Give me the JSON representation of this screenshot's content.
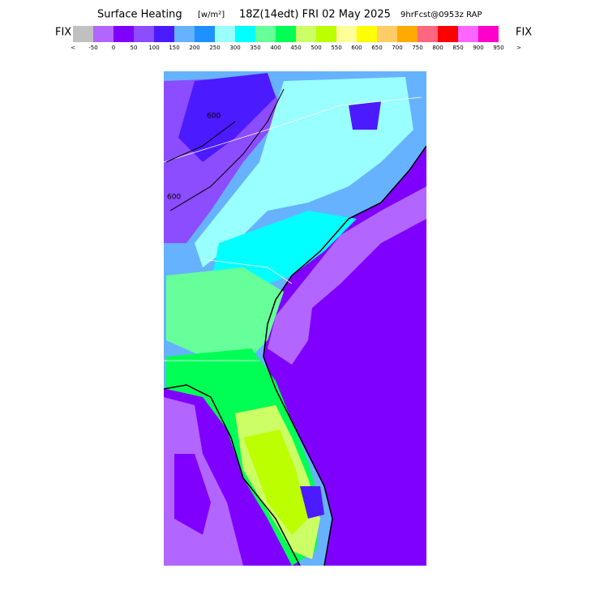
{
  "header": {
    "title": "Surface Heating",
    "units": "[w/m²]",
    "valid": "18Z(14edt) FRI 02 May 2025",
    "forecast": "9hrFcst@0953z RAP"
  },
  "legend": {
    "left_label": "FIX",
    "right_label": "FIX",
    "colors": [
      "#c0c0c0",
      "#b266ff",
      "#8000ff",
      "#8c4cff",
      "#4c1aff",
      "#66b2ff",
      "#1e90ff",
      "#99ffff",
      "#00ffff",
      "#66ff99",
      "#00ff55",
      "#ccff66",
      "#bbff00",
      "#ffff99",
      "#ffff00",
      "#ffcc66",
      "#ffaa00",
      "#ff6680",
      "#ff0000",
      "#ff66ff",
      "#ff00cc"
    ],
    "labels": [
      "<",
      "-50",
      "0",
      "50",
      "100",
      "150",
      "200",
      "250",
      "300",
      "350",
      "400",
      "450",
      "500",
      "550",
      "600",
      "650",
      "700",
      "750",
      "800",
      "850",
      "900",
      "950",
      ">"
    ]
  },
  "map": {
    "contour_labels": [
      "600",
      "600"
    ]
  }
}
